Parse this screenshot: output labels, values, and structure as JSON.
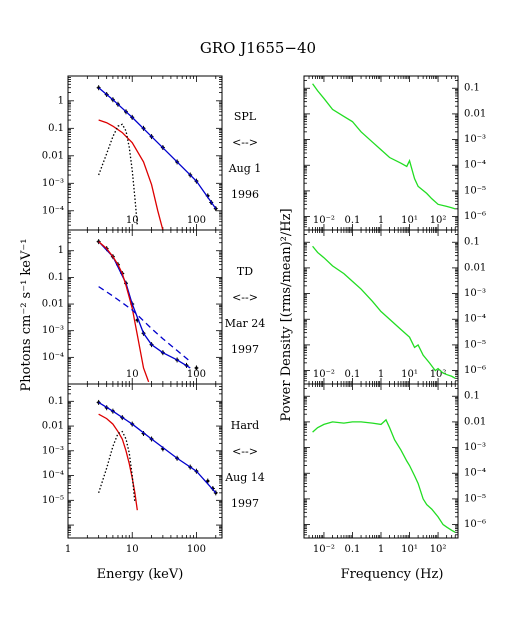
{
  "figure_title": "GRO J1655−40",
  "left_ylabel": "Photons cm⁻² s⁻¹ keV⁻¹",
  "left_xlabel": "Energy (keV)",
  "right_ylabel": "Power Density [(rms/mean)²/Hz]",
  "right_xlabel": "Frequency (Hz)",
  "state_labels": [
    {
      "state": "SPL",
      "arrow": "<-->",
      "date": "Aug 1",
      "year": "1996"
    },
    {
      "state": "TD",
      "arrow": "<-->",
      "date": "Mar 24",
      "year": "1997"
    },
    {
      "state": "Hard",
      "arrow": "<-->",
      "date": "Aug 14",
      "year": "1997"
    }
  ],
  "chart_data": [
    {
      "type": "line",
      "panel": "spectrum-spl",
      "xscale": "log",
      "yscale": "log",
      "xlim": [
        1,
        250
      ],
      "ylim": [
        2e-05,
        8
      ],
      "yticks": [
        1,
        0.1,
        0.01,
        0.001,
        0.0001
      ],
      "yticklabels": [
        "1",
        "0.1",
        "0.01",
        "10⁻³",
        "10⁻⁴"
      ],
      "xticks": [
        10,
        100
      ],
      "xticklabels": [
        "10",
        "100"
      ],
      "series": [
        {
          "style": "data-points",
          "color": "#000000",
          "x": [
            3,
            4,
            5,
            6,
            8,
            10,
            15,
            20,
            30,
            50,
            80,
            100,
            150,
            170,
            200
          ],
          "y": [
            3,
            1.7,
            1.1,
            0.75,
            0.4,
            0.25,
            0.1,
            0.05,
            0.02,
            0.006,
            0.002,
            0.0012,
            0.00035,
            0.0002,
            0.00012
          ]
        },
        {
          "style": "solid",
          "color": "#0000cc",
          "x": [
            3,
            5,
            10,
            20,
            50,
            100,
            200
          ],
          "y": [
            3,
            1.1,
            0.25,
            0.05,
            0.006,
            0.0012,
            0.00012
          ]
        },
        {
          "style": "solid",
          "color": "#dd0000",
          "x": [
            3,
            4,
            5,
            7,
            10,
            15,
            20,
            25,
            30
          ],
          "y": [
            0.2,
            0.16,
            0.12,
            0.07,
            0.03,
            0.006,
            0.0009,
            0.0001,
            2e-05
          ]
        },
        {
          "style": "dotted",
          "color": "#000000",
          "x": [
            3,
            4,
            5,
            6,
            7,
            8,
            9,
            10,
            11,
            12
          ],
          "y": [
            0.002,
            0.012,
            0.05,
            0.12,
            0.14,
            0.08,
            0.02,
            0.003,
            0.0003,
            3e-05
          ]
        }
      ]
    },
    {
      "type": "line",
      "panel": "spectrum-td",
      "xscale": "log",
      "yscale": "log",
      "xlim": [
        1,
        250
      ],
      "ylim": [
        1e-05,
        6
      ],
      "yticks": [
        1,
        0.1,
        0.01,
        0.001,
        0.0001
      ],
      "yticklabels": [
        "1",
        "0.1",
        "0.01",
        "10⁻³",
        "10⁻⁴"
      ],
      "xticks": [
        10,
        100
      ],
      "xticklabels": [
        "10",
        "100"
      ],
      "series": [
        {
          "style": "data-points",
          "color": "#000000",
          "x": [
            3,
            4,
            5,
            6,
            7,
            8,
            10,
            12,
            15,
            20,
            30,
            50,
            70,
            100
          ],
          "y": [
            2.2,
            1.2,
            0.6,
            0.3,
            0.14,
            0.06,
            0.01,
            0.0025,
            0.0008,
            0.0003,
            0.00015,
            8e-05,
            5e-05,
            4e-05
          ]
        },
        {
          "style": "solid",
          "color": "#0000cc",
          "x": [
            3,
            5,
            8,
            10,
            15,
            20,
            30,
            50,
            80
          ],
          "y": [
            2.2,
            0.6,
            0.06,
            0.01,
            0.0008,
            0.0003,
            0.00015,
            8e-05,
            4e-05
          ]
        },
        {
          "style": "solid",
          "color": "#dd0000",
          "x": [
            3,
            4,
            5,
            6,
            7,
            8,
            10,
            12,
            15,
            18
          ],
          "y": [
            2.2,
            1.2,
            0.6,
            0.3,
            0.14,
            0.05,
            0.007,
            0.0007,
            4e-05,
            1.2e-05
          ]
        },
        {
          "style": "dashed",
          "color": "#0000cc",
          "x": [
            3,
            5,
            10,
            20,
            30,
            50,
            80
          ],
          "y": [
            0.045,
            0.02,
            0.006,
            0.0012,
            0.0005,
            0.00018,
            7e-05
          ]
        }
      ]
    },
    {
      "type": "line",
      "panel": "spectrum-hard",
      "xscale": "log",
      "yscale": "log",
      "xlim": [
        1,
        250
      ],
      "ylim": [
        3e-07,
        0.5
      ],
      "yticks": [
        0.1,
        0.01,
        0.001,
        0.0001,
        1e-05
      ],
      "yticklabels": [
        "0.1",
        "0.01",
        "10⁻³",
        "10⁻⁴",
        "10⁻⁵"
      ],
      "xticks": [
        1,
        10,
        100
      ],
      "xticklabels": [
        "1",
        "10",
        "100"
      ],
      "series": [
        {
          "style": "data-points",
          "color": "#000000",
          "x": [
            3,
            4,
            5,
            7,
            10,
            15,
            20,
            30,
            50,
            80,
            100,
            150,
            180,
            200
          ],
          "y": [
            0.09,
            0.055,
            0.04,
            0.022,
            0.012,
            0.005,
            0.003,
            0.0012,
            0.0005,
            0.00022,
            0.00015,
            6e-05,
            3e-05,
            2e-05
          ]
        },
        {
          "style": "solid",
          "color": "#0000cc",
          "x": [
            3,
            5,
            10,
            20,
            50,
            100,
            200
          ],
          "y": [
            0.09,
            0.04,
            0.012,
            0.003,
            0.0005,
            0.00015,
            2e-05
          ]
        },
        {
          "style": "solid",
          "color": "#dd0000",
          "x": [
            3,
            4,
            5,
            6,
            7,
            8,
            9,
            10,
            11,
            12
          ],
          "y": [
            0.03,
            0.02,
            0.012,
            0.006,
            0.003,
            0.001,
            0.0003,
            8e-05,
            2e-05,
            4e-06
          ]
        },
        {
          "style": "dotted",
          "color": "#000000",
          "x": [
            3,
            4,
            5,
            6,
            7,
            8,
            9,
            10,
            11
          ],
          "y": [
            2e-05,
            0.0002,
            0.0015,
            0.005,
            0.006,
            0.003,
            0.0008,
            0.0001,
            8e-06
          ]
        }
      ]
    },
    {
      "type": "line",
      "panel": "pds-spl",
      "xscale": "log",
      "yscale": "log",
      "xlim": [
        0.002,
        500
      ],
      "ylim": [
        3e-07,
        0.3
      ],
      "yticks": [
        0.1,
        0.01,
        0.001,
        0.0001,
        1e-05,
        1e-06
      ],
      "yticklabels": [
        "0.1",
        "0.01",
        "10⁻³",
        "10⁻⁴",
        "10⁻⁵",
        "10⁻⁶"
      ],
      "xticks": [
        0.01,
        0.1,
        1,
        10,
        100
      ],
      "xticklabels": [
        "10⁻²",
        "0.1",
        "1",
        "10¹",
        "10²"
      ],
      "series": [
        {
          "style": "solid",
          "color": "#22dd22",
          "x": [
            0.004,
            0.006,
            0.01,
            0.02,
            0.05,
            0.1,
            0.2,
            0.5,
            1,
            2,
            5,
            8,
            10,
            15,
            20,
            40,
            60,
            100,
            200,
            300,
            400
          ],
          "y": [
            0.15,
            0.08,
            0.04,
            0.015,
            0.008,
            0.005,
            0.002,
            0.0008,
            0.0004,
            0.0002,
            0.00012,
            9e-05,
            0.00015,
            3e-05,
            1.5e-05,
            8e-06,
            5e-06,
            3e-06,
            2.5e-06,
            2.2e-06,
            2e-06
          ]
        }
      ]
    },
    {
      "type": "line",
      "panel": "pds-td",
      "xscale": "log",
      "yscale": "log",
      "xlim": [
        0.002,
        500
      ],
      "ylim": [
        3e-07,
        0.3
      ],
      "yticks": [
        0.1,
        0.01,
        0.001,
        0.0001,
        1e-05,
        1e-06
      ],
      "yticklabels": [
        "0.1",
        "0.01",
        "10⁻³",
        "10⁻⁴",
        "10⁻⁵",
        "10⁻⁶"
      ],
      "xticks": [
        0.01,
        0.1,
        1,
        10,
        100
      ],
      "xticklabels": [
        "10⁻²",
        "0.1",
        "1",
        "10¹",
        "10²"
      ],
      "series": [
        {
          "style": "solid",
          "color": "#22dd22",
          "x": [
            0.004,
            0.006,
            0.01,
            0.02,
            0.05,
            0.1,
            0.2,
            0.5,
            1,
            2,
            5,
            10,
            15,
            20,
            30,
            50,
            80,
            100,
            150,
            200,
            300,
            400
          ],
          "y": [
            0.07,
            0.04,
            0.025,
            0.012,
            0.006,
            0.003,
            0.0015,
            0.0005,
            0.0002,
            0.0001,
            4e-05,
            2e-05,
            8e-06,
            1e-05,
            4e-06,
            2e-06,
            1e-06,
            1.2e-06,
            8e-07,
            7e-07,
            6e-07,
            5e-07
          ]
        }
      ]
    },
    {
      "type": "line",
      "panel": "pds-hard",
      "xscale": "log",
      "yscale": "log",
      "xlim": [
        0.002,
        500
      ],
      "ylim": [
        3e-07,
        0.3
      ],
      "yticks": [
        0.1,
        0.01,
        0.001,
        0.0001,
        1e-05,
        1e-06
      ],
      "yticklabels": [
        "0.1",
        "0.01",
        "10⁻³",
        "10⁻⁴",
        "10⁻⁵",
        "10⁻⁶"
      ],
      "xticks": [
        0.01,
        0.1,
        1,
        10,
        100
      ],
      "xticklabels": [
        "10⁻²",
        "0.1",
        "1",
        "10¹",
        "10²"
      ],
      "series": [
        {
          "style": "solid",
          "color": "#22dd22",
          "x": [
            0.004,
            0.006,
            0.01,
            0.02,
            0.05,
            0.1,
            0.2,
            0.5,
            1,
            1.5,
            2,
            3,
            5,
            8,
            10,
            15,
            20,
            30,
            40,
            60,
            100,
            150,
            200,
            300,
            400
          ],
          "y": [
            0.004,
            0.006,
            0.008,
            0.01,
            0.009,
            0.01,
            0.01,
            0.009,
            0.008,
            0.012,
            0.006,
            0.002,
            0.0008,
            0.0003,
            0.0002,
            8e-05,
            4e-05,
            1e-05,
            6e-06,
            4e-06,
            2e-06,
            1e-06,
            8e-07,
            6e-07,
            5e-07
          ]
        }
      ]
    }
  ]
}
